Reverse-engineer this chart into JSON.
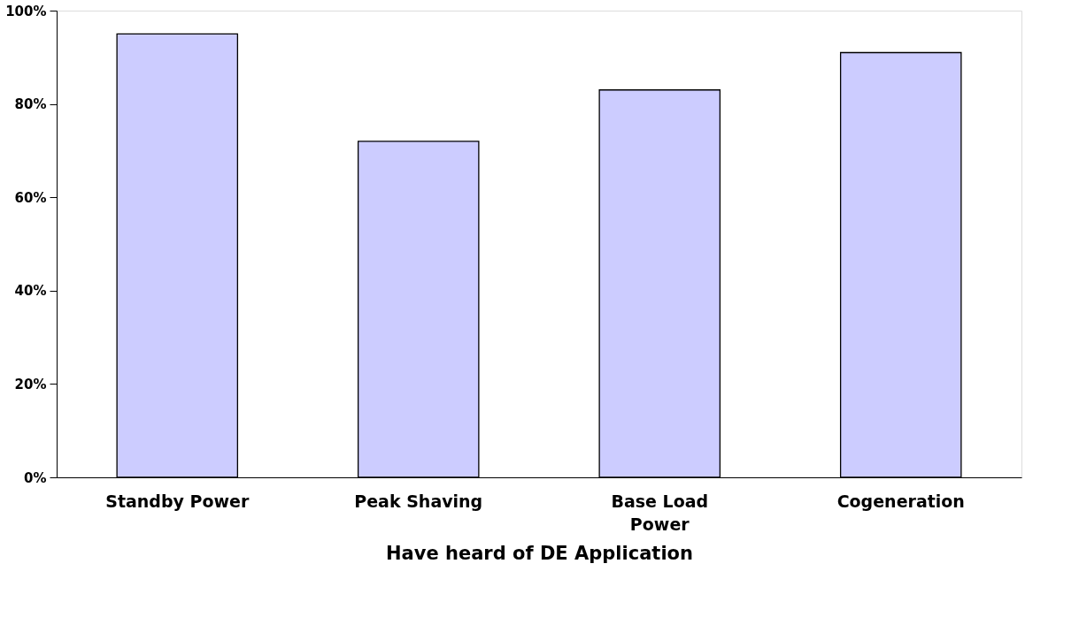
{
  "chart_data": {
    "type": "bar",
    "xlabel": "Have heard of DE Application",
    "categories": [
      "Standby Power",
      "Peak Shaving",
      "Base Load Power",
      "Cogeneration"
    ],
    "values": [
      95,
      72,
      83,
      91
    ],
    "color": "#ccccff",
    "ylim": [
      0,
      100
    ],
    "yticks": [
      {
        "value": 0,
        "label": "0%"
      },
      {
        "value": 20,
        "label": "20%"
      },
      {
        "value": 40,
        "label": "40%"
      },
      {
        "value": 60,
        "label": "60%"
      },
      {
        "value": 80,
        "label": "80%"
      },
      {
        "value": 100,
        "label": "100%"
      }
    ],
    "grid": false
  }
}
